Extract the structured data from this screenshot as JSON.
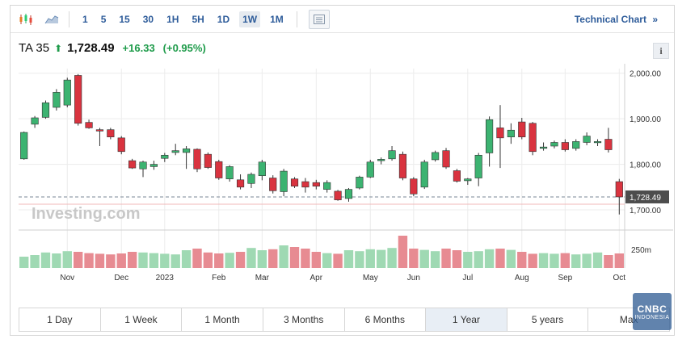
{
  "toolbar": {
    "intervals": [
      "1",
      "5",
      "15",
      "30",
      "1H",
      "5H",
      "1D",
      "1W",
      "1M"
    ],
    "active_interval": "1W",
    "technical_chart_label": "Technical Chart",
    "technical_chart_arrow": "»"
  },
  "quote": {
    "name": "TA 35",
    "price": "1,728.49",
    "change": "+16.33",
    "change_pct": "(+0.95%)",
    "up_color": "#1e9b4a"
  },
  "info_label": "i",
  "watermark": "Investing.com",
  "price_tag": "1,728.49",
  "volume_label": "250m",
  "range_buttons": [
    "1 Day",
    "1 Week",
    "1 Month",
    "3 Months",
    "6 Months",
    "1 Year",
    "5 years",
    "Max"
  ],
  "active_range": "1 Year",
  "badge": {
    "line1": "CNBC",
    "line2": "INDONESIA"
  },
  "colors": {
    "up": "#3cb371",
    "down": "#d9333f",
    "up_vol": "#9fd9b3",
    "down_vol": "#e78b92"
  },
  "chart_data": {
    "type": "candlestick",
    "y_ticks": [
      "2,000.00",
      "1,900.00",
      "1,800.00",
      "1,700.00"
    ],
    "y_tick_values": [
      2000,
      1900,
      1800,
      1700
    ],
    "ylim": [
      1670,
      2010
    ],
    "x_labels": [
      "Nov",
      "Dec",
      "2023",
      "Feb",
      "Mar",
      "Apr",
      "May",
      "Jun",
      "Jul",
      "Aug",
      "Sep",
      "Oct"
    ],
    "x_label_index": [
      4,
      9,
      13,
      18,
      22,
      27,
      32,
      36,
      41,
      46,
      50,
      55
    ],
    "last_close": 1728.49,
    "candles": [
      [
        1812,
        1872,
        1810,
        1870
      ],
      [
        1888,
        1906,
        1880,
        1902
      ],
      [
        1903,
        1940,
        1900,
        1935
      ],
      [
        1925,
        1965,
        1918,
        1958
      ],
      [
        1930,
        1990,
        1925,
        1985
      ],
      [
        1995,
        1998,
        1885,
        1890
      ],
      [
        1892,
        1898,
        1878,
        1880
      ],
      [
        1876,
        1880,
        1840,
        1873
      ],
      [
        1876,
        1880,
        1855,
        1860
      ],
      [
        1858,
        1862,
        1822,
        1828
      ],
      [
        1808,
        1812,
        1790,
        1792
      ],
      [
        1790,
        1808,
        1772,
        1805
      ],
      [
        1795,
        1808,
        1788,
        1800
      ],
      [
        1813,
        1825,
        1805,
        1820
      ],
      [
        1826,
        1845,
        1820,
        1830
      ],
      [
        1826,
        1840,
        1790,
        1834
      ],
      [
        1833,
        1835,
        1783,
        1790
      ],
      [
        1822,
        1826,
        1790,
        1793
      ],
      [
        1806,
        1810,
        1766,
        1770
      ],
      [
        1768,
        1798,
        1762,
        1795
      ],
      [
        1766,
        1778,
        1745,
        1750
      ],
      [
        1758,
        1782,
        1748,
        1778
      ],
      [
        1775,
        1810,
        1765,
        1805
      ],
      [
        1770,
        1776,
        1736,
        1742
      ],
      [
        1740,
        1790,
        1730,
        1785
      ],
      [
        1768,
        1772,
        1748,
        1752
      ],
      [
        1762,
        1770,
        1738,
        1750
      ],
      [
        1760,
        1766,
        1745,
        1752
      ],
      [
        1745,
        1765,
        1738,
        1760
      ],
      [
        1741,
        1744,
        1720,
        1722
      ],
      [
        1725,
        1748,
        1718,
        1745
      ],
      [
        1748,
        1775,
        1745,
        1772
      ],
      [
        1772,
        1810,
        1770,
        1805
      ],
      [
        1808,
        1815,
        1800,
        1811
      ],
      [
        1812,
        1840,
        1808,
        1830
      ],
      [
        1822,
        1828,
        1765,
        1770
      ],
      [
        1768,
        1772,
        1730,
        1735
      ],
      [
        1750,
        1810,
        1746,
        1805
      ],
      [
        1810,
        1830,
        1806,
        1826
      ],
      [
        1830,
        1836,
        1790,
        1794
      ],
      [
        1786,
        1790,
        1760,
        1763
      ],
      [
        1764,
        1770,
        1755,
        1768
      ],
      [
        1770,
        1825,
        1752,
        1820
      ],
      [
        1825,
        1905,
        1795,
        1898
      ],
      [
        1880,
        1930,
        1792,
        1858
      ],
      [
        1860,
        1890,
        1845,
        1875
      ],
      [
        1893,
        1902,
        1855,
        1860
      ],
      [
        1890,
        1893,
        1820,
        1828
      ],
      [
        1835,
        1848,
        1830,
        1838
      ],
      [
        1840,
        1852,
        1835,
        1848
      ],
      [
        1848,
        1855,
        1828,
        1832
      ],
      [
        1835,
        1855,
        1830,
        1850
      ],
      [
        1848,
        1870,
        1842,
        1862
      ],
      [
        1848,
        1855,
        1840,
        1850
      ],
      [
        1855,
        1880,
        1826,
        1832
      ],
      [
        1762,
        1768,
        1690,
        1728.49
      ]
    ],
    "volumes": [
      0.35,
      0.4,
      0.48,
      0.45,
      0.52,
      0.5,
      0.46,
      0.44,
      0.42,
      0.45,
      0.5,
      0.48,
      0.46,
      0.44,
      0.42,
      0.55,
      0.6,
      0.48,
      0.45,
      0.47,
      0.5,
      0.62,
      0.55,
      0.58,
      0.7,
      0.65,
      0.6,
      0.5,
      0.46,
      0.44,
      0.55,
      0.52,
      0.58,
      0.56,
      0.62,
      1.0,
      0.6,
      0.56,
      0.52,
      0.6,
      0.55,
      0.5,
      0.52,
      0.58,
      0.6,
      0.56,
      0.5,
      0.44,
      0.46,
      0.44,
      0.46,
      0.42,
      0.44,
      0.48,
      0.4,
      0.45
    ]
  }
}
